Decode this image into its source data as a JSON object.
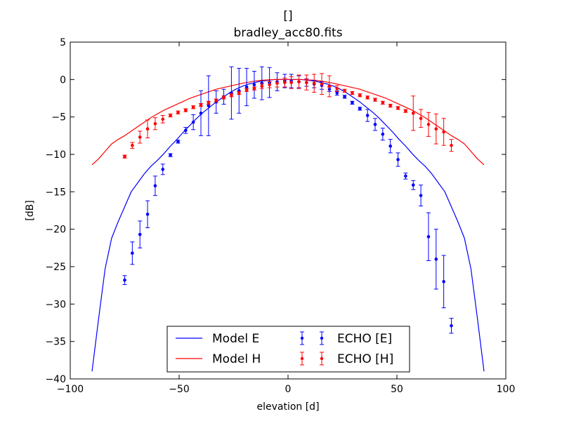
{
  "chart_data": {
    "type": "line",
    "title_line1": "[]",
    "title_line2": "bradley_acc80.fits",
    "xlabel": "elevation [d]",
    "ylabel": "[dB]",
    "xlim": [
      -100,
      100
    ],
    "ylim": [
      -40,
      5
    ],
    "xticks": [
      -100,
      -50,
      0,
      50,
      100
    ],
    "yticks": [
      5,
      0,
      -5,
      -10,
      -15,
      -20,
      -25,
      -30,
      -35,
      -40
    ],
    "xtick_labels": [
      "−100",
      "−50",
      "0",
      "50",
      "100"
    ],
    "ytick_labels": [
      "5",
      "0",
      "−5",
      "−10",
      "−15",
      "−20",
      "−25",
      "−30",
      "−35",
      "−40"
    ],
    "legend_position": "lower-center",
    "colors": {
      "E": "#0000ff",
      "H": "#ff0000"
    },
    "series": [
      {
        "name": "Model E",
        "kind": "line",
        "color": "#0000ff",
        "x": [
          -90,
          -87,
          -84,
          -81,
          -78,
          -75,
          -72,
          -69,
          -66,
          -63,
          -60,
          -57,
          -54,
          -51,
          -48,
          -45,
          -42,
          -39,
          -36,
          -33,
          -30,
          -27,
          -24,
          -21,
          -18,
          -15,
          -12,
          -9,
          -6,
          -3,
          0,
          3,
          6,
          9,
          12,
          15,
          18,
          21,
          24,
          27,
          30,
          33,
          36,
          39,
          42,
          45,
          48,
          51,
          54,
          57,
          60,
          63,
          66,
          69,
          72,
          75,
          78,
          81,
          84,
          87,
          90
        ],
        "y": [
          -39.0,
          -32.0,
          -25.3,
          -21.2,
          -19.0,
          -17.0,
          -15.0,
          -13.8,
          -12.6,
          -11.6,
          -10.8,
          -9.9,
          -8.9,
          -8.0,
          -7.0,
          -6.1,
          -5.2,
          -4.4,
          -3.7,
          -3.0,
          -2.4,
          -1.8,
          -1.3,
          -0.9,
          -0.6,
          -0.4,
          -0.2,
          -0.1,
          0.0,
          0.0,
          0.0,
          0.0,
          0.0,
          -0.1,
          -0.2,
          -0.4,
          -0.6,
          -0.9,
          -1.3,
          -1.8,
          -2.4,
          -3.0,
          -3.7,
          -4.4,
          -5.2,
          -6.1,
          -7.0,
          -8.0,
          -8.9,
          -9.9,
          -10.8,
          -11.6,
          -12.6,
          -13.8,
          -15.0,
          -17.0,
          -19.0,
          -21.2,
          -25.3,
          -32.0,
          -39.0
        ]
      },
      {
        "name": "Model H",
        "kind": "line",
        "color": "#ff0000",
        "x": [
          -90,
          -87,
          -84,
          -81,
          -78,
          -75,
          -72,
          -69,
          -66,
          -63,
          -60,
          -57,
          -54,
          -51,
          -48,
          -45,
          -42,
          -39,
          -36,
          -33,
          -30,
          -27,
          -24,
          -21,
          -18,
          -15,
          -12,
          -9,
          -6,
          -3,
          0,
          3,
          6,
          9,
          12,
          15,
          18,
          21,
          24,
          27,
          30,
          33,
          36,
          39,
          42,
          45,
          48,
          51,
          54,
          57,
          60,
          63,
          66,
          69,
          72,
          75,
          78,
          81,
          84,
          87,
          90
        ],
        "y": [
          -11.4,
          -10.6,
          -9.6,
          -8.6,
          -8.0,
          -7.5,
          -6.9,
          -6.3,
          -5.7,
          -5.1,
          -4.6,
          -4.1,
          -3.7,
          -3.3,
          -2.9,
          -2.5,
          -2.2,
          -1.9,
          -1.6,
          -1.3,
          -1.1,
          -0.9,
          -0.7,
          -0.5,
          -0.35,
          -0.2,
          -0.1,
          -0.05,
          0.0,
          0.0,
          0.0,
          0.0,
          0.0,
          -0.05,
          -0.1,
          -0.2,
          -0.35,
          -0.5,
          -0.7,
          -0.9,
          -1.1,
          -1.3,
          -1.6,
          -1.9,
          -2.2,
          -2.5,
          -2.9,
          -3.3,
          -3.7,
          -4.1,
          -4.6,
          -5.1,
          -5.7,
          -6.3,
          -6.9,
          -7.5,
          -8.0,
          -8.6,
          -9.6,
          -10.6,
          -11.4
        ]
      },
      {
        "name": "ECHO [E]",
        "kind": "errorbar",
        "color": "#0000ff",
        "x": [
          -75,
          -71.5,
          -68,
          -64.5,
          -61,
          -57.5,
          -54,
          -50.5,
          -47,
          -43.5,
          -40,
          -36.5,
          -33,
          -29.5,
          -26,
          -22.5,
          -19,
          -15.5,
          -12,
          -8.5,
          -5,
          -1.5,
          1.5,
          5,
          8.5,
          12,
          15.5,
          19,
          22.5,
          26,
          29.5,
          33,
          36.5,
          40,
          43.5,
          47,
          50.5,
          54,
          57.5,
          61,
          64.5,
          68,
          71.5,
          75
        ],
        "y": [
          -26.8,
          -23.2,
          -20.7,
          -18.0,
          -14.2,
          -12.0,
          -10.1,
          -8.3,
          -6.8,
          -5.7,
          -4.5,
          -3.5,
          -3.0,
          -2.3,
          -1.8,
          -1.5,
          -1.0,
          -0.7,
          -0.5,
          -0.4,
          -0.3,
          -0.2,
          -0.2,
          -0.3,
          -0.4,
          -0.6,
          -0.8,
          -1.3,
          -1.8,
          -2.3,
          -3.1,
          -3.9,
          -4.8,
          -6.0,
          -7.3,
          -8.9,
          -10.7,
          -12.9,
          -14.1,
          -15.5,
          -21.0,
          -24.0,
          -27.0,
          -32.9
        ],
        "err": [
          0.6,
          1.5,
          1.8,
          1.8,
          1.3,
          0.7,
          0.2,
          0.2,
          0.4,
          1.0,
          3.0,
          4.0,
          1.5,
          1.0,
          3.5,
          3.0,
          2.5,
          1.8,
          2.2,
          2.0,
          1.2,
          0.9,
          0.9,
          0.8,
          0.5,
          0.5,
          0.5,
          0.3,
          0.3,
          0.2,
          0.2,
          0.2,
          0.8,
          0.8,
          0.8,
          0.9,
          0.9,
          0.4,
          0.6,
          1.4,
          3.2,
          4.0,
          3.5,
          1.0
        ]
      },
      {
        "name": "ECHO [H]",
        "kind": "errorbar",
        "color": "#ff0000",
        "x": [
          -75,
          -71.5,
          -68,
          -64.5,
          -61,
          -57.5,
          -54,
          -50.5,
          -47,
          -43.5,
          -40,
          -36.5,
          -33,
          -29.5,
          -26,
          -22.5,
          -19,
          -15.5,
          -12,
          -8.5,
          -5,
          -1.5,
          1.5,
          5,
          8.5,
          12,
          15.5,
          19,
          22.5,
          26,
          29.5,
          33,
          36.5,
          40,
          43.5,
          47,
          50.5,
          54,
          57.5,
          61,
          64.5,
          68,
          71.5,
          75
        ],
        "y": [
          -10.3,
          -8.8,
          -7.7,
          -6.6,
          -5.9,
          -5.3,
          -4.8,
          -4.4,
          -4.1,
          -3.7,
          -3.4,
          -3.1,
          -2.8,
          -2.4,
          -2.1,
          -1.8,
          -1.4,
          -1.2,
          -0.9,
          -0.7,
          -0.5,
          -0.4,
          -0.4,
          -0.3,
          -0.4,
          -0.5,
          -0.6,
          -0.9,
          -1.2,
          -1.5,
          -1.8,
          -2.1,
          -2.4,
          -2.7,
          -3.1,
          -3.5,
          -3.8,
          -4.2,
          -4.5,
          -5.2,
          -6.0,
          -6.6,
          -7.0,
          -8.8
        ],
        "err": [
          0.2,
          0.4,
          0.8,
          1.2,
          0.8,
          0.5,
          0.2,
          0.2,
          0.2,
          0.2,
          0.2,
          0.2,
          0.2,
          0.2,
          0.2,
          0.2,
          0.2,
          0.2,
          0.3,
          0.4,
          0.5,
          0.6,
          0.8,
          0.9,
          1.0,
          1.2,
          1.4,
          1.4,
          0.4,
          0.2,
          0.2,
          0.2,
          0.2,
          0.2,
          0.2,
          0.2,
          0.2,
          0.2,
          2.3,
          1.2,
          1.6,
          2.0,
          1.8,
          0.8
        ]
      }
    ]
  }
}
